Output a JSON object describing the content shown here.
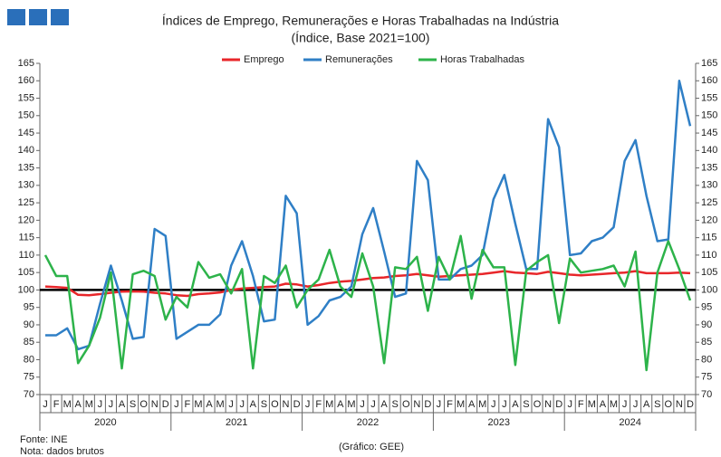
{
  "chart_data": {
    "type": "line",
    "title": "Índices de Emprego, Remunerações e Horas Trabalhadas na Indústria",
    "subtitle": "(Índice, Base 2021=100)",
    "categories": [
      "J",
      "F",
      "M",
      "A",
      "M",
      "J",
      "J",
      "A",
      "S",
      "O",
      "N",
      "D",
      "J",
      "F",
      "M",
      "A",
      "M",
      "J",
      "J",
      "A",
      "S",
      "O",
      "N",
      "D",
      "J",
      "F",
      "M",
      "A",
      "M",
      "J",
      "J",
      "A",
      "S",
      "O",
      "N",
      "D",
      "J",
      "F",
      "M",
      "A",
      "M",
      "J",
      "J",
      "A",
      "S",
      "O",
      "N",
      "D",
      "J",
      "F",
      "M",
      "A",
      "M",
      "J",
      "J",
      "A",
      "S",
      "O",
      "N",
      "D"
    ],
    "years": [
      "2020",
      "2021",
      "2022",
      "2023",
      "2024"
    ],
    "series": [
      {
        "name": "Emprego",
        "color": "#e8262a",
        "values": [
          101,
          100.8,
          100.6,
          98.6,
          98.5,
          98.8,
          99.2,
          99.5,
          99.6,
          99.5,
          99.2,
          99.0,
          98.5,
          98.3,
          98.8,
          99.0,
          99.3,
          100.0,
          100.4,
          100.6,
          100.8,
          101.0,
          101.8,
          101.6,
          101.0,
          101.4,
          102.0,
          102.4,
          102.6,
          103.0,
          103.4,
          103.6,
          104.0,
          104.2,
          104.6,
          104.2,
          103.8,
          104.0,
          104.2,
          104.4,
          104.6,
          105.0,
          105.4,
          105.0,
          104.8,
          104.6,
          105.2,
          104.8,
          104.4,
          104.2,
          104.4,
          104.6,
          104.8,
          105.0,
          105.4,
          104.8,
          104.8,
          104.8,
          105.0,
          104.8
        ]
      },
      {
        "name": "Remunerações",
        "color": "#2f7fc6",
        "values": [
          87,
          87,
          89,
          83,
          84,
          96,
          107,
          97,
          86,
          86.5,
          117.5,
          115.5,
          86,
          88,
          90,
          90,
          93,
          107,
          114,
          104,
          91,
          91.5,
          127,
          122,
          90,
          92.5,
          97,
          98,
          101,
          116,
          123.5,
          111,
          98,
          99,
          137,
          131.5,
          103,
          103,
          106,
          107,
          110,
          126,
          133,
          119,
          106,
          106,
          149,
          141,
          110,
          110.5,
          114,
          115,
          118,
          137,
          143,
          127,
          114,
          114.5,
          160,
          147
        ]
      },
      {
        "name": "Horas Trabalhadas",
        "color": "#2db34a",
        "values": [
          110,
          104,
          104,
          79,
          84,
          92,
          105,
          77.5,
          104.5,
          105.5,
          104,
          91.5,
          98,
          95,
          108,
          103.5,
          104.5,
          99,
          106,
          77.5,
          104,
          102,
          107,
          95,
          100,
          103,
          111.5,
          101,
          98,
          110.5,
          101,
          79,
          106.5,
          106,
          109.5,
          94,
          109.5,
          103,
          115.5,
          97.5,
          111.5,
          106.5,
          106.5,
          78.5,
          105.5,
          108,
          110,
          90.5,
          109,
          105,
          105.5,
          106,
          107,
          101,
          111,
          77,
          105,
          114,
          106,
          97
        ]
      }
    ],
    "reference_line": 100,
    "ylim": [
      70,
      165
    ],
    "yticks": [
      70,
      75,
      80,
      85,
      90,
      95,
      100,
      105,
      110,
      115,
      120,
      125,
      130,
      135,
      140,
      145,
      150,
      155,
      160,
      165
    ],
    "y2lim": [
      70,
      165
    ],
    "y2ticks": [
      70,
      75,
      80,
      85,
      90,
      95,
      100,
      105,
      110,
      115,
      120,
      125,
      130,
      135,
      140,
      145,
      150,
      155,
      160,
      165
    ],
    "grid": false,
    "legend": "top",
    "notes": [
      "Fonte: INE",
      "Nota: dados brutos"
    ],
    "credit": "(Gráfico: GEE)"
  }
}
